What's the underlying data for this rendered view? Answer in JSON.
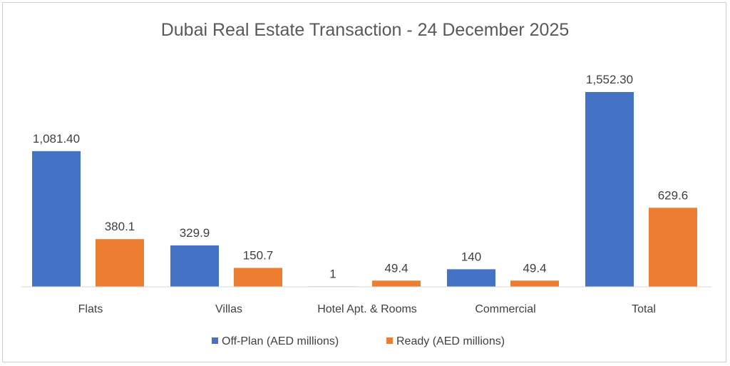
{
  "chart_data": {
    "type": "bar",
    "title": "Dubai Real Estate Transaction - 24 December 2025",
    "categories": [
      "Flats",
      "Villas",
      "Hotel Apt. & Rooms",
      "Commercial",
      "Total"
    ],
    "series": [
      {
        "name": "Off-Plan (AED millions)",
        "color": "#4472C4",
        "values": [
          1081.4,
          329.9,
          1,
          140,
          1552.3
        ],
        "labels": [
          "1,081.40",
          "329.9",
          "1",
          "140",
          "1,552.30"
        ]
      },
      {
        "name": "Ready (AED millions)",
        "color": "#ED7D31",
        "values": [
          380.1,
          150.7,
          49.4,
          49.4,
          629.6
        ],
        "labels": [
          "380.1",
          "150.7",
          "49.4",
          "49.4",
          "629.6"
        ]
      }
    ],
    "ylim": [
      0,
      1600
    ],
    "grid": false,
    "legend": "bottom"
  }
}
